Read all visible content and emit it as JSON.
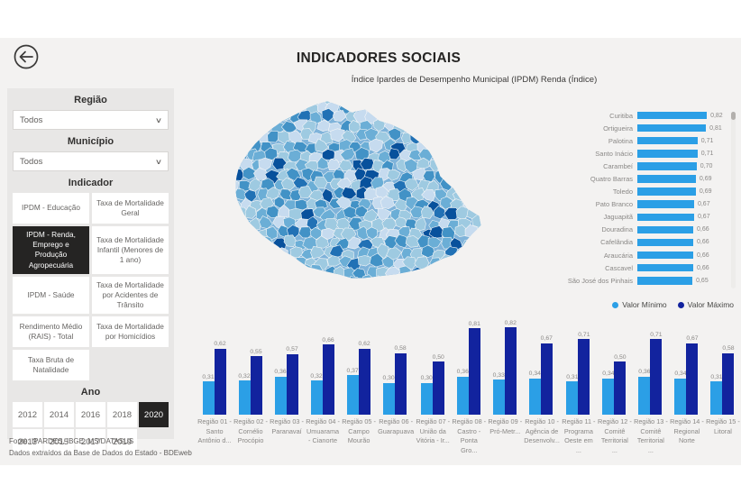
{
  "header": {
    "title": "INDICADORES SOCIAIS",
    "subtitle": "Índice Ipardes de Desempenho Municipal (IPDM) Renda (Índice)",
    "back_icon": "arrow-left-circle"
  },
  "sidebar": {
    "region_label": "Região",
    "region_value": "Todos",
    "municipality_label": "Município",
    "municipality_value": "Todos",
    "indicator_label": "Indicador",
    "indicators": [
      {
        "label": "IPDM - Educação",
        "selected": false
      },
      {
        "label": "Taxa de Mortalidade Geral",
        "selected": false
      },
      {
        "label": "IPDM - Renda, Emprego e Produção Agropecuária",
        "selected": true
      },
      {
        "label": "Taxa de Mortalidade Infantil (Menores de 1 ano)",
        "selected": false
      },
      {
        "label": "IPDM - Saúde",
        "selected": false
      },
      {
        "label": "Taxa de Mortalidade por Acidentes de Trânsito",
        "selected": false
      },
      {
        "label": "Rendimento Médio (RAIS) - Total",
        "selected": false
      },
      {
        "label": "Taxa de Mortalidade por Homicídios",
        "selected": false
      },
      {
        "label": "Taxa Bruta de Natalidade",
        "selected": false
      }
    ],
    "year_label": "Ano",
    "years": [
      {
        "label": "2012",
        "selected": false
      },
      {
        "label": "2014",
        "selected": false
      },
      {
        "label": "2016",
        "selected": false
      },
      {
        "label": "2018",
        "selected": false
      },
      {
        "label": "2020",
        "selected": true
      },
      {
        "label": "2013",
        "selected": false
      },
      {
        "label": "2015",
        "selected": false
      },
      {
        "label": "2017",
        "selected": false
      },
      {
        "label": "2019",
        "selected": false
      }
    ],
    "source_line1": "Fonte: IPARDES, IBGE, MS/DATASUS",
    "source_line2": "Dados extraídos da Base de Dados do Estado - BDEweb"
  },
  "colors": {
    "value_min": "#2B9FE6",
    "value_max": "#12239E",
    "selected_button": "#252423"
  },
  "map": {
    "name": "Mapa coroplético do Paraná por município",
    "base_color": "#7fb3da",
    "cell_stroke": "#f8f8f8",
    "palette": [
      "#c6dbef",
      "#9ecae1",
      "#6baed6",
      "#4292c6",
      "#2171b5",
      "#08519c"
    ],
    "accent_region_color": "#08519c"
  },
  "chart_data": [
    {
      "type": "bar",
      "name": "ranking-municipios",
      "orientation": "horizontal",
      "title": "",
      "categories": [
        "Curitiba",
        "Ortigueira",
        "Palotina",
        "Santo Inácio",
        "Carambeí",
        "Quatro Barras",
        "Toledo",
        "Pato Branco",
        "Jaguapitã",
        "Douradina",
        "Cafelândia",
        "Araucária",
        "Cascavel",
        "São José dos Pinhais"
      ],
      "values": [
        0.82,
        0.81,
        0.71,
        0.71,
        0.7,
        0.69,
        0.69,
        0.67,
        0.67,
        0.66,
        0.66,
        0.66,
        0.66,
        0.65
      ],
      "value_labels": [
        "0,82",
        "0,81",
        "0,71",
        "0,71",
        "0,70",
        "0,69",
        "0,69",
        "0,67",
        "0,67",
        "0,66",
        "0,66",
        "0,66",
        "0,66",
        "0,65"
      ],
      "xlim": [
        0,
        0.9
      ],
      "grid": false,
      "bar_color": "#2B9FE6"
    },
    {
      "type": "bar",
      "name": "regioes-valor-minimo-maximo",
      "orientation": "vertical",
      "categories": [
        "Região 01 - Santo Antônio d...",
        "Região 02 - Cornélio Procópio",
        "Região 03 - Paranavaí",
        "Região 04 - Umuarama - Cianorte",
        "Região 05 - Campo Mourão",
        "Região 06 - Guarapuava",
        "Região 07 - União da Vitória - Ir...",
        "Região 08 - Castro - Ponta Gro...",
        "Região 09 - Pró-Metr...",
        "Região 10 - Agência de Desenvolv...",
        "Região 11 - Programa Oeste em ...",
        "Região 12 - Comitê Territorial ...",
        "Região 13 - Comitê Territorial ...",
        "Região 14 - Regional Norte",
        "Região 15 - Litoral"
      ],
      "series": [
        {
          "name": "Valor Mínimo",
          "color": "#2B9FE6",
          "values": [
            0.31,
            0.32,
            0.36,
            0.32,
            0.37,
            0.3,
            0.3,
            0.36,
            0.33,
            0.34,
            0.31,
            0.34,
            0.36,
            0.34,
            0.31
          ]
        },
        {
          "name": "Valor Máximo",
          "color": "#12239E",
          "values": [
            0.62,
            0.55,
            0.57,
            0.66,
            0.62,
            0.58,
            0.5,
            0.81,
            0.82,
            0.67,
            0.71,
            0.5,
            0.71,
            0.67,
            0.58
          ]
        }
      ],
      "ylim": [
        0,
        0.9
      ],
      "grid": false,
      "legend_position": "top-right"
    }
  ]
}
